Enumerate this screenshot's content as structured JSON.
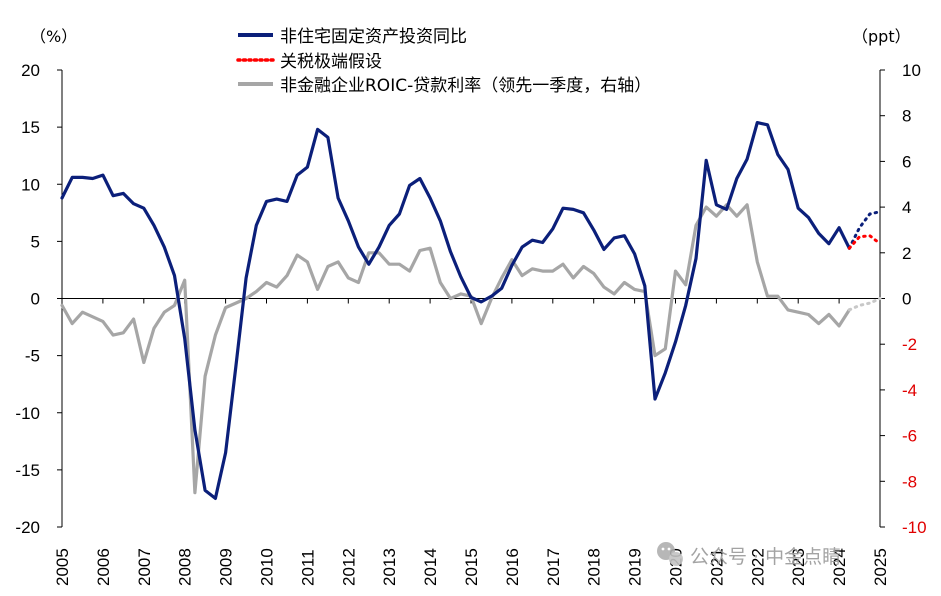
{
  "chart_data": {
    "type": "line",
    "title": "",
    "left_unit": "（%）",
    "right_unit": "（ppt）",
    "y_left": {
      "min": -20,
      "max": 20,
      "ticks": [
        20,
        15,
        10,
        5,
        0,
        -5,
        -10,
        -15,
        -20
      ]
    },
    "y_right": {
      "min": -10,
      "max": 10,
      "ticks": [
        10,
        8,
        6,
        4,
        2,
        0,
        -2,
        -4,
        -6,
        -8,
        -10
      ]
    },
    "x_years": [
      "2005",
      "2006",
      "2007",
      "2008",
      "2009",
      "2010",
      "2011",
      "2012",
      "2013",
      "2014",
      "2015",
      "2016",
      "2017",
      "2018",
      "2019",
      "2020",
      "2021",
      "2022",
      "2023",
      "2024",
      "2025"
    ],
    "colors": {
      "navy": "#0b1f7a",
      "red": "#ff0000",
      "gray": "#a6a6a6",
      "axis": "#000000",
      "right_neg_ticks": "#e00000"
    },
    "legend": [
      {
        "label": "非住宅固定资产投资同比",
        "style": "solid",
        "color": "#0b1f7a"
      },
      {
        "label": "关税极端假设",
        "style": "dotted",
        "color": "#ff0000"
      },
      {
        "label": "非金融企业ROIC-贷款利率（领先一季度，右轴）",
        "style": "solid",
        "color": "#a6a6a6"
      }
    ],
    "series": [
      {
        "name": "非住宅固定资产投资同比",
        "axis": "left",
        "x": [
          2005.0,
          2005.25,
          2005.5,
          2005.75,
          2006.0,
          2006.25,
          2006.5,
          2006.75,
          2007.0,
          2007.25,
          2007.5,
          2007.75,
          2008.0,
          2008.25,
          2008.5,
          2008.75,
          2009.0,
          2009.25,
          2009.5,
          2009.75,
          2010.0,
          2010.25,
          2010.5,
          2010.75,
          2011.0,
          2011.25,
          2011.5,
          2011.75,
          2012.0,
          2012.25,
          2012.5,
          2012.75,
          2013.0,
          2013.25,
          2013.5,
          2013.75,
          2014.0,
          2014.25,
          2014.5,
          2014.75,
          2015.0,
          2015.25,
          2015.5,
          2015.75,
          2016.0,
          2016.25,
          2016.5,
          2016.75,
          2017.0,
          2017.25,
          2017.5,
          2017.75,
          2018.0,
          2018.25,
          2018.5,
          2018.75,
          2019.0,
          2019.25,
          2019.5,
          2019.75,
          2020.0,
          2020.25,
          2020.5,
          2020.75,
          2021.0,
          2021.25,
          2021.5,
          2021.75,
          2022.0,
          2022.25,
          2022.5,
          2022.75,
          2023.0,
          2023.25,
          2023.5,
          2023.75,
          2024.0,
          2024.25
        ],
        "y": [
          8.8,
          10.6,
          10.6,
          10.5,
          10.8,
          9.0,
          9.2,
          8.3,
          7.9,
          6.4,
          4.5,
          2.0,
          -3.5,
          -11.5,
          -16.8,
          -17.5,
          -13.5,
          -6.0,
          1.8,
          6.4,
          8.5,
          8.7,
          8.5,
          10.8,
          11.5,
          14.8,
          14.1,
          8.8,
          6.8,
          4.5,
          3.0,
          4.5,
          6.4,
          7.4,
          9.9,
          10.5,
          8.8,
          6.8,
          4.1,
          1.9,
          0.1,
          -0.3,
          0.2,
          0.9,
          2.9,
          4.5,
          5.1,
          4.9,
          6.1,
          7.9,
          7.8,
          7.5,
          6.0,
          4.3,
          5.3,
          5.5,
          3.9,
          1.1,
          -8.8,
          -6.5,
          -3.8,
          -0.6,
          3.5,
          12.1,
          8.2,
          7.8,
          10.5,
          12.2,
          15.4,
          15.2,
          12.6,
          11.3,
          7.9,
          7.1,
          5.7,
          4.8,
          6.2,
          4.4
        ]
      },
      {
        "name": "非住宅固定资产投资同比（外推）",
        "axis": "left",
        "style": "dotted",
        "x": [
          2024.25,
          2024.5,
          2024.75,
          2025.0
        ],
        "y": [
          4.4,
          6.2,
          7.4,
          7.6
        ]
      },
      {
        "name": "关税极端假设",
        "axis": "left",
        "style": "dotted",
        "x": [
          2024.25,
          2024.5,
          2024.75,
          2025.0
        ],
        "y": [
          4.4,
          5.4,
          5.5,
          4.8
        ]
      },
      {
        "name": "非金融企业ROIC-贷款利率（领先一季度，右轴）",
        "axis": "right",
        "x": [
          2005.0,
          2005.25,
          2005.5,
          2005.75,
          2006.0,
          2006.25,
          2006.5,
          2006.75,
          2007.0,
          2007.25,
          2007.5,
          2007.75,
          2008.0,
          2008.25,
          2008.5,
          2008.75,
          2009.0,
          2009.25,
          2009.5,
          2009.75,
          2010.0,
          2010.25,
          2010.5,
          2010.75,
          2011.0,
          2011.25,
          2011.5,
          2011.75,
          2012.0,
          2012.25,
          2012.5,
          2012.75,
          2013.0,
          2013.25,
          2013.5,
          2013.75,
          2014.0,
          2014.25,
          2014.5,
          2014.75,
          2015.0,
          2015.25,
          2015.5,
          2015.75,
          2016.0,
          2016.25,
          2016.5,
          2016.75,
          2017.0,
          2017.25,
          2017.5,
          2017.75,
          2018.0,
          2018.25,
          2018.5,
          2018.75,
          2019.0,
          2019.25,
          2019.5,
          2019.75,
          2020.0,
          2020.25,
          2020.5,
          2020.75,
          2021.0,
          2021.25,
          2021.5,
          2021.75,
          2022.0,
          2022.25,
          2022.5,
          2022.75,
          2023.0,
          2023.25,
          2023.5,
          2023.75,
          2024.0,
          2024.25
        ],
        "y": [
          -0.3,
          -1.1,
          -0.6,
          -0.8,
          -1.0,
          -1.6,
          -1.5,
          -0.9,
          -2.8,
          -1.3,
          -0.6,
          -0.3,
          0.8,
          -8.5,
          -3.4,
          -1.6,
          -0.4,
          -0.2,
          0.0,
          0.3,
          0.7,
          0.5,
          1.0,
          1.9,
          1.6,
          0.4,
          1.4,
          1.6,
          0.9,
          0.7,
          2.0,
          2.0,
          1.5,
          1.5,
          1.2,
          2.1,
          2.2,
          0.7,
          0.0,
          0.2,
          0.1,
          -1.1,
          0.0,
          0.9,
          1.7,
          1.0,
          1.3,
          1.2,
          1.2,
          1.5,
          0.9,
          1.4,
          1.1,
          0.5,
          0.2,
          0.7,
          0.4,
          0.3,
          -2.5,
          -2.2,
          1.2,
          0.6,
          3.2,
          4.0,
          3.6,
          4.1,
          3.6,
          4.1,
          1.6,
          0.1,
          0.1,
          -0.5,
          -0.6,
          -0.7,
          -1.1,
          -0.7,
          -1.2,
          -0.5
        ]
      },
      {
        "name": "非金融企业ROIC-贷款利率（外推）",
        "axis": "right",
        "style": "dotted",
        "x": [
          2024.25,
          2024.5,
          2024.75,
          2025.0
        ],
        "y": [
          -0.5,
          -0.3,
          -0.2,
          0.0
        ]
      }
    ]
  },
  "watermark": "公众号 · 中金点睛",
  "watermark_icon": "wechat-icon"
}
